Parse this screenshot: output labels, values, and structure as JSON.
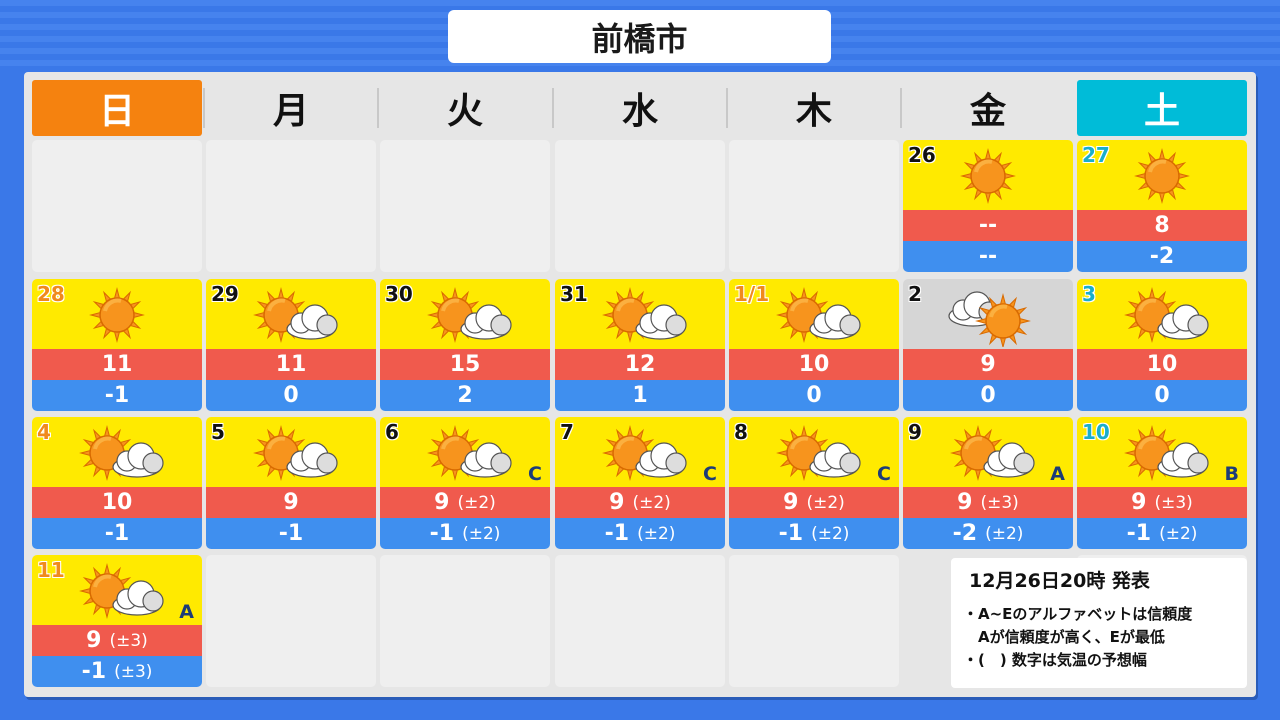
{
  "title": "前橋市",
  "weekdays": [
    "日",
    "月",
    "火",
    "水",
    "木",
    "金",
    "土"
  ],
  "colors": {
    "sunday": "#f5820f",
    "saturday": "#00bcd8",
    "high": "#f05a4d",
    "low": "#3f8fef",
    "sunny_bg": "#ffea00",
    "cloudy_bg": "#d6d6d6"
  },
  "weeks": [
    [
      null,
      null,
      null,
      null,
      null,
      {
        "date": "26",
        "date_color": "black",
        "weather": "sunny",
        "high": "--",
        "low": "--"
      },
      {
        "date": "27",
        "date_color": "cyan",
        "weather": "sunny",
        "high": "8",
        "low": "-2"
      }
    ],
    [
      {
        "date": "28",
        "date_color": "orange",
        "weather": "sunny",
        "high": "11",
        "low": "-1"
      },
      {
        "date": "29",
        "date_color": "black",
        "weather": "sunny-then-cloudy",
        "high": "11",
        "low": "0"
      },
      {
        "date": "30",
        "date_color": "black",
        "weather": "sunny-then-cloudy",
        "high": "15",
        "low": "2"
      },
      {
        "date": "31",
        "date_color": "black",
        "weather": "sunny-then-cloudy",
        "high": "12",
        "low": "1"
      },
      {
        "date": "1/1",
        "date_color": "orange",
        "weather": "sunny-then-cloudy",
        "high": "10",
        "low": "0"
      },
      {
        "date": "2",
        "date_color": "black",
        "weather": "cloudy-then-sunny",
        "high": "9",
        "low": "0"
      },
      {
        "date": "3",
        "date_color": "cyan",
        "weather": "sunny-then-cloudy",
        "high": "10",
        "low": "0"
      }
    ],
    [
      {
        "date": "4",
        "date_color": "orange",
        "weather": "sunny-then-cloudy",
        "high": "10",
        "low": "-1"
      },
      {
        "date": "5",
        "date_color": "black",
        "weather": "sunny-then-cloudy",
        "high": "9",
        "low": "-1"
      },
      {
        "date": "6",
        "date_color": "black",
        "weather": "sunny-then-cloudy",
        "high": "9",
        "high_range": "(±2)",
        "low": "-1",
        "low_range": "(±2)",
        "confidence": "C"
      },
      {
        "date": "7",
        "date_color": "black",
        "weather": "sunny-then-cloudy",
        "high": "9",
        "high_range": "(±2)",
        "low": "-1",
        "low_range": "(±2)",
        "confidence": "C"
      },
      {
        "date": "8",
        "date_color": "black",
        "weather": "sunny-then-cloudy",
        "high": "9",
        "high_range": "(±2)",
        "low": "-1",
        "low_range": "(±2)",
        "confidence": "C"
      },
      {
        "date": "9",
        "date_color": "black",
        "weather": "sunny-then-cloudy",
        "high": "9",
        "high_range": "(±3)",
        "low": "-2",
        "low_range": "(±2)",
        "confidence": "A"
      },
      {
        "date": "10",
        "date_color": "cyan",
        "weather": "sunny-then-cloudy",
        "high": "9",
        "high_range": "(±3)",
        "low": "-1",
        "low_range": "(±2)",
        "confidence": "B"
      }
    ],
    [
      {
        "date": "11",
        "date_color": "orange",
        "weather": "sunny-then-cloudy",
        "high": "9",
        "high_range": "(±3)",
        "low": "-1",
        "low_range": "(±3)",
        "confidence": "A"
      },
      null,
      null,
      null,
      null,
      null,
      null
    ]
  ],
  "note": {
    "published": "12月26日20時 発表",
    "lines": [
      "・A~Eのアルファベットは信頼度",
      "　Aが信頼度が高く、Eが最低",
      "・(　) 数字は気温の予想幅"
    ]
  }
}
